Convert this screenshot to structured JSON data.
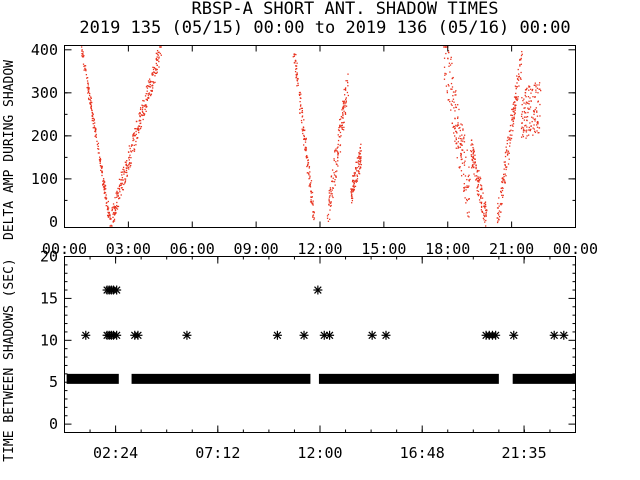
{
  "title": "RBSP-A SHORT ANT. SHADOW TIMES",
  "subtitle": "2019 135 (05/15) 00:00 to 2019 136 (05/16) 00:00",
  "colors": {
    "top_points": "#e8321e",
    "bottom_points": "#000000",
    "background": "#ffffff"
  },
  "chart_data": [
    {
      "type": "scatter",
      "name": "top-panel",
      "ylabel": "DELTA AMP DURING SHADOW",
      "xlim": [
        0,
        24
      ],
      "ylim": [
        0,
        410
      ],
      "x_unit": "hours",
      "x_ticks": [
        0,
        3,
        6,
        9,
        12,
        15,
        18,
        21,
        24
      ],
      "x_tick_labels": [
        "00:00",
        "03:00",
        "06:00",
        "09:00",
        "12:00",
        "15:00",
        "18:00",
        "21:00",
        "00:00"
      ],
      "y_ticks": [
        100,
        200,
        300,
        400
      ],
      "y_tick_labels": [
        "100",
        "200",
        "300",
        "400"
      ],
      "clusters": [
        {
          "x_start": 0.8,
          "x_end": 2.1,
          "y_start": 400,
          "y_end": 5,
          "spread": 12
        },
        {
          "x_start": 2.15,
          "x_end": 4.5,
          "y_start": 5,
          "y_end": 400,
          "spread": 25
        },
        {
          "x_start": 10.75,
          "x_end": 11.7,
          "y_start": 400,
          "y_end": 10,
          "spread": 20
        },
        {
          "x_start": 12.35,
          "x_end": 13.3,
          "y_start": 20,
          "y_end": 330,
          "spread": 35
        },
        {
          "x_start": 13.4,
          "x_end": 13.9,
          "y_start": 60,
          "y_end": 160,
          "spread": 25
        },
        {
          "x_start": 17.8,
          "x_end": 19.0,
          "y_start": 400,
          "y_end": 60,
          "spread": 70
        },
        {
          "x_start": 19.05,
          "x_end": 19.8,
          "y_start": 170,
          "y_end": 5,
          "spread": 30
        },
        {
          "x_start": 20.3,
          "x_end": 21.45,
          "y_start": 5,
          "y_end": 380,
          "spread": 30
        },
        {
          "x_start": 21.45,
          "x_end": 22.3,
          "y_start": 250,
          "y_end": 270,
          "spread": 60
        }
      ]
    },
    {
      "type": "scatter",
      "name": "bottom-panel",
      "ylabel": "TIME BETWEEN SHADOWS (SEC)",
      "xlim": [
        0,
        24
      ],
      "ylim": [
        0,
        20
      ],
      "x_unit": "hours",
      "x_ticks": [
        2.4,
        7.2,
        12.0,
        16.8,
        21.5833
      ],
      "x_tick_labels": [
        "02:24",
        "07:12",
        "12:00",
        "16:48",
        "21:35"
      ],
      "y_ticks": [
        0,
        5,
        10,
        15,
        20
      ],
      "y_tick_labels": [
        "0",
        "5",
        "10",
        "15",
        "20"
      ],
      "baseline_value": 5.4,
      "baseline_segments": [
        [
          0.1,
          2.55
        ],
        [
          3.15,
          11.55
        ],
        [
          11.95,
          20.4
        ],
        [
          21.05,
          24
        ]
      ],
      "points": [
        {
          "x": 1.0,
          "y": 10.6
        },
        {
          "x": 2.0,
          "y": 10.6
        },
        {
          "x": 2.1,
          "y": 10.6
        },
        {
          "x": 2.2,
          "y": 10.6
        },
        {
          "x": 2.3,
          "y": 10.6
        },
        {
          "x": 2.45,
          "y": 10.6
        },
        {
          "x": 2.0,
          "y": 16.0
        },
        {
          "x": 2.1,
          "y": 16.0
        },
        {
          "x": 2.2,
          "y": 16.0
        },
        {
          "x": 2.3,
          "y": 16.0
        },
        {
          "x": 2.45,
          "y": 16.0
        },
        {
          "x": 3.3,
          "y": 10.6
        },
        {
          "x": 3.45,
          "y": 10.6
        },
        {
          "x": 5.75,
          "y": 10.6
        },
        {
          "x": 10.0,
          "y": 10.6
        },
        {
          "x": 11.25,
          "y": 10.6
        },
        {
          "x": 11.9,
          "y": 16.0
        },
        {
          "x": 12.2,
          "y": 10.6
        },
        {
          "x": 12.45,
          "y": 10.6
        },
        {
          "x": 14.45,
          "y": 10.6
        },
        {
          "x": 15.1,
          "y": 10.6
        },
        {
          "x": 19.8,
          "y": 10.6
        },
        {
          "x": 19.95,
          "y": 10.6
        },
        {
          "x": 20.1,
          "y": 10.6
        },
        {
          "x": 20.25,
          "y": 10.6
        },
        {
          "x": 21.1,
          "y": 10.6
        },
        {
          "x": 23.0,
          "y": 10.6
        },
        {
          "x": 23.45,
          "y": 10.6
        }
      ]
    }
  ]
}
